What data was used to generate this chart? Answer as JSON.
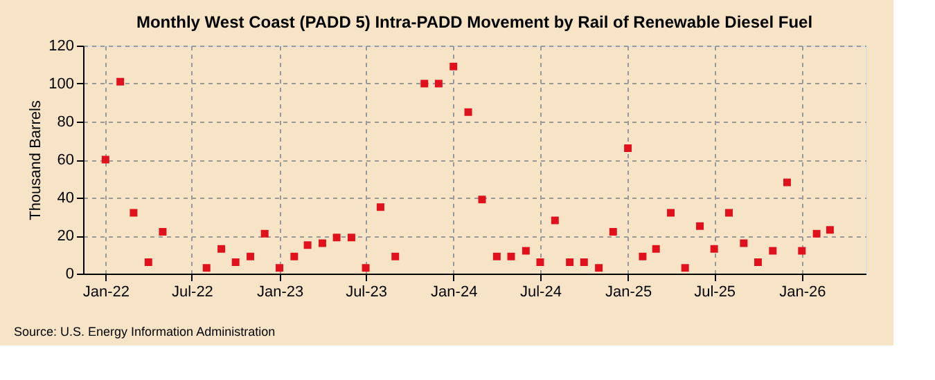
{
  "chart_data": {
    "type": "scatter",
    "title": "Monthly West Coast (PADD 5) Intra-PADD Movement by Rail of Renewable Diesel Fuel",
    "ylabel": "Thousand Barrels",
    "x": [
      "2022-01",
      "2022-02",
      "2022-03",
      "2022-04",
      "2022-05",
      "2022-06",
      "2022-07",
      "2022-08",
      "2022-09",
      "2022-10",
      "2022-11",
      "2022-12",
      "2023-01",
      "2023-02",
      "2023-03",
      "2023-04",
      "2023-05",
      "2023-06",
      "2023-07",
      "2023-08",
      "2023-09",
      "2023-10",
      "2023-11",
      "2023-12",
      "2024-01",
      "2024-02",
      "2024-03",
      "2024-04",
      "2024-05",
      "2024-06",
      "2024-07",
      "2024-08",
      "2024-09",
      "2024-10",
      "2024-11",
      "2024-12",
      "2025-01",
      "2025-02",
      "2025-03",
      "2025-04",
      "2025-05",
      "2025-06",
      "2025-07",
      "2025-08",
      "2025-09",
      "2025-10",
      "2025-11",
      "2025-12",
      "2026-01",
      "2026-02",
      "2026-03"
    ],
    "series": [
      {
        "color": "#e0101c",
        "values": [
          60,
          101,
          32,
          6,
          22,
          null,
          null,
          3,
          13,
          6,
          9,
          21,
          3,
          9,
          15,
          16,
          19,
          19,
          3,
          35,
          9,
          null,
          100,
          100,
          109,
          85,
          39,
          9,
          9,
          12,
          6,
          28,
          6,
          6,
          3,
          22,
          66,
          9,
          13,
          32,
          3,
          25,
          13,
          32,
          16,
          6,
          12,
          48,
          12,
          21,
          23
        ]
      }
    ],
    "marker": "square",
    "grid": true,
    "xlim": [
      "2021-11-15",
      "2026-05-15"
    ],
    "xticks": [
      {
        "value": "2022-01",
        "label": "Jan-22"
      },
      {
        "value": "2022-07",
        "label": "Jul-22"
      },
      {
        "value": "2023-01",
        "label": "Jan-23"
      },
      {
        "value": "2023-07",
        "label": "Jul-23"
      },
      {
        "value": "2024-01",
        "label": "Jan-24"
      },
      {
        "value": "2024-07",
        "label": "Jul-24"
      },
      {
        "value": "2025-01",
        "label": "Jan-25"
      },
      {
        "value": "2025-07",
        "label": "Jul-25"
      },
      {
        "value": "2026-01",
        "label": "Jan-26"
      }
    ],
    "ylim": [
      0,
      120
    ],
    "yticks": [
      0,
      20,
      40,
      60,
      80,
      100,
      120
    ],
    "annotations": [
      "Source: U.S. Energy Information Administration"
    ]
  }
}
